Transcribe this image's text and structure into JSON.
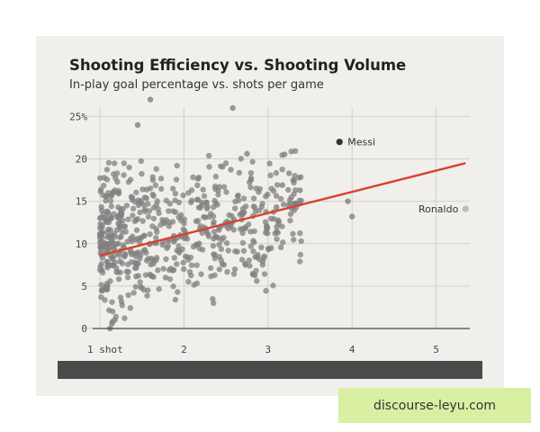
{
  "chart_data": {
    "type": "scatter",
    "title": "Shooting Efficiency vs. Shooting Volume",
    "subtitle": "In-play goal percentage vs. shots per game",
    "xlabel": "",
    "ylabel": "",
    "xlim": [
      0.85,
      5.4
    ],
    "ylim": [
      0,
      26
    ],
    "x_ticks": [
      {
        "value": 1,
        "label": "1 shot"
      },
      {
        "value": 2,
        "label": "2"
      },
      {
        "value": 3,
        "label": "3"
      },
      {
        "value": 4,
        "label": "4"
      },
      {
        "value": 5,
        "label": "5"
      }
    ],
    "y_ticks": [
      {
        "value": 0,
        "label": "0"
      },
      {
        "value": 5,
        "label": "5"
      },
      {
        "value": 10,
        "label": "10"
      },
      {
        "value": 15,
        "label": "15"
      },
      {
        "value": 20,
        "label": "20"
      },
      {
        "value": 25,
        "label": "25%"
      }
    ],
    "grid": true,
    "trend_line": {
      "x": [
        1.0,
        5.35
      ],
      "y": [
        8.6,
        19.5
      ],
      "color": "#d9412b"
    },
    "highlighted_points": [
      {
        "label": "Messi",
        "x": 3.85,
        "y": 22.0,
        "color": "#333333"
      },
      {
        "label": "Ronaldo",
        "x": 5.35,
        "y": 14.1,
        "color": "#bbbbbb"
      }
    ],
    "notable_points": [
      {
        "x": 1.6,
        "y": 27.0
      },
      {
        "x": 2.58,
        "y": 26.0
      },
      {
        "x": 1.45,
        "y": 24.0
      },
      {
        "x": 2.75,
        "y": 20.6
      },
      {
        "x": 3.25,
        "y": 18.3
      },
      {
        "x": 3.17,
        "y": 16.9
      },
      {
        "x": 3.38,
        "y": 16.3
      },
      {
        "x": 3.95,
        "y": 15.0
      },
      {
        "x": 4.0,
        "y": 13.2
      },
      {
        "x": 3.1,
        "y": 14.3
      },
      {
        "x": 1.15,
        "y": 0.8
      },
      {
        "x": 1.12,
        "y": 0.0
      }
    ],
    "point_color": "#808080",
    "cloud": {
      "count": 620,
      "seed": 42,
      "x_range": [
        1.0,
        3.4
      ],
      "y_center": 11.0,
      "y_spread": 4.0
    }
  },
  "watermark": {
    "text": "discourse-leyu.com"
  }
}
